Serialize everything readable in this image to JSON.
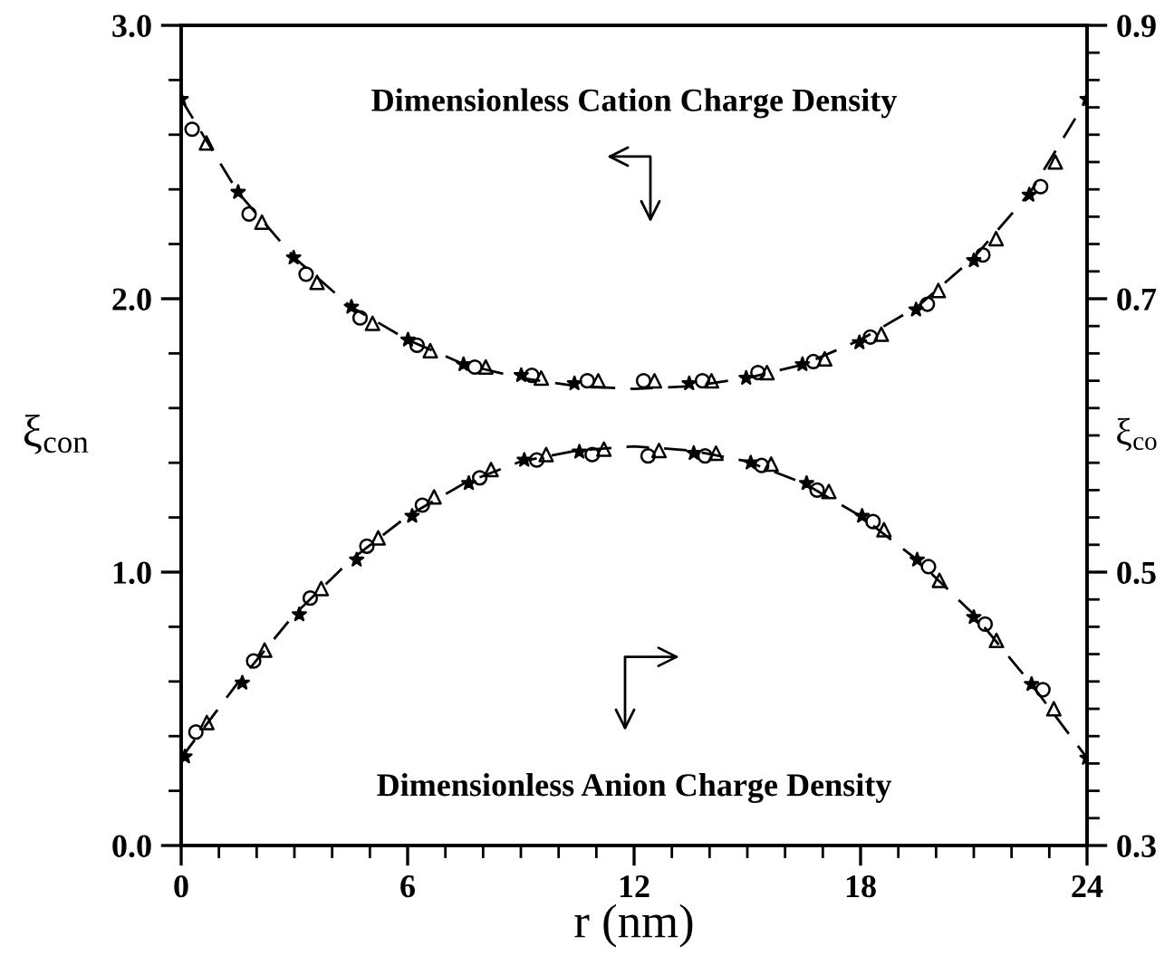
{
  "chart_data": {
    "type": "scatter",
    "xlabel": "r (nm)",
    "ylabel": "ξ$_{con}$",
    "y2label": "ξ$_{co}$",
    "annotations": [
      "Dimensionless Cation Charge Density",
      "Dimensionless Anion Charge Density"
    ],
    "xlim": [
      0,
      24
    ],
    "ylim": [
      0,
      3
    ],
    "y2lim": [
      0.3,
      0.9
    ],
    "xticks": [
      0,
      {
        "value": 1,
        "label": null
      },
      {
        "value": 2,
        "label": null
      },
      {
        "value": 3,
        "label": null
      },
      {
        "value": 4,
        "label": null
      },
      {
        "value": 5,
        "label": null
      },
      6,
      {
        "value": 7,
        "label": null
      },
      {
        "value": 8,
        "label": null
      },
      {
        "value": 9,
        "label": null
      },
      {
        "value": 10,
        "label": null
      },
      {
        "value": 11,
        "label": null
      },
      12,
      {
        "value": 13,
        "label": null
      },
      {
        "value": 14,
        "label": null
      },
      {
        "value": 15,
        "label": null
      },
      {
        "value": 16,
        "label": null
      },
      {
        "value": 17,
        "label": null
      },
      18,
      {
        "value": 19,
        "label": null
      },
      {
        "value": 20,
        "label": null
      },
      {
        "value": 21,
        "label": null
      },
      {
        "value": 22,
        "label": null
      },
      {
        "value": 23,
        "label": null
      },
      24
    ],
    "yticks": [
      {
        "value": 0,
        "label": "0.0"
      },
      {
        "value": 0.2,
        "label": null
      },
      {
        "value": 0.4,
        "label": null
      },
      {
        "value": 0.6,
        "label": null
      },
      {
        "value": 0.8,
        "label": null
      },
      {
        "value": 1,
        "label": "1.0"
      },
      {
        "value": 1.2,
        "label": null
      },
      {
        "value": 1.4,
        "label": null
      },
      {
        "value": 1.6,
        "label": null
      },
      {
        "value": 1.8,
        "label": null
      },
      {
        "value": 2,
        "label": "2.0"
      },
      {
        "value": 2.2,
        "label": null
      },
      {
        "value": 2.4,
        "label": null
      },
      {
        "value": 2.6,
        "label": null
      },
      {
        "value": 2.8,
        "label": null
      },
      {
        "value": 3,
        "label": "3.0"
      }
    ],
    "y2ticks": [
      0.3,
      {
        "value": 0.32,
        "label": null
      },
      {
        "value": 0.34,
        "label": null
      },
      {
        "value": 0.36,
        "label": null
      },
      {
        "value": 0.38,
        "label": null
      },
      {
        "value": 0.4,
        "label": null
      },
      {
        "value": 0.42,
        "label": null
      },
      {
        "value": 0.44,
        "label": null
      },
      {
        "value": 0.46,
        "label": null
      },
      {
        "value": 0.48,
        "label": null
      },
      0.5,
      {
        "value": 0.52,
        "label": null
      },
      {
        "value": 0.54,
        "label": null
      },
      {
        "value": 0.56,
        "label": null
      },
      {
        "value": 0.58,
        "label": null
      },
      {
        "value": 0.6,
        "label": null
      },
      {
        "value": 0.62,
        "label": null
      },
      {
        "value": 0.64,
        "label": null
      },
      {
        "value": 0.66,
        "label": null
      },
      {
        "value": 0.68,
        "label": null
      },
      0.7,
      {
        "value": 0.72,
        "label": null
      },
      {
        "value": 0.74,
        "label": null
      },
      {
        "value": 0.76,
        "label": null
      },
      {
        "value": 0.78,
        "label": null
      },
      {
        "value": 0.8,
        "label": null
      },
      {
        "value": 0.82,
        "label": null
      },
      {
        "value": 0.84,
        "label": null
      },
      {
        "value": 0.86,
        "label": null
      },
      {
        "value": 0.88,
        "label": null
      },
      0.9
    ],
    "grid": false,
    "legend": false,
    "series": [
      {
        "type": "line",
        "color": "#000000",
        "line_style": "dashed",
        "marker": "none",
        "x": [
          0,
          1.5,
          3,
          4.5,
          6,
          7.5,
          9,
          10.5,
          12,
          13.5,
          15,
          16.5,
          18,
          19.5,
          21,
          22.5,
          24
        ],
        "values": [
          2.73,
          2.39,
          2.15,
          1.97,
          1.85,
          1.76,
          1.71,
          1.68,
          1.67,
          1.68,
          1.71,
          1.76,
          1.85,
          1.97,
          2.15,
          2.39,
          2.73
        ]
      },
      {
        "color": "#000000",
        "marker": "star",
        "x": [
          0,
          1.51,
          2.98,
          4.51,
          6.01,
          7.48,
          9.01,
          10.42,
          13.46,
          14.97,
          16.46,
          17.97,
          19.47,
          21.0,
          22.47,
          24
        ],
        "values": [
          2.73,
          2.39,
          2.15,
          1.97,
          1.85,
          1.76,
          1.72,
          1.69,
          1.69,
          1.71,
          1.76,
          1.84,
          1.96,
          2.14,
          2.38,
          2.73
        ]
      },
      {
        "color": "#000000",
        "marker": "circle",
        "x": [
          0.29,
          1.8,
          3.31,
          4.74,
          6.25,
          7.78,
          9.29,
          10.76,
          12.25,
          13.81,
          15.28,
          16.75,
          18.26,
          19.77,
          21.24,
          22.77
        ],
        "values": [
          2.62,
          2.31,
          2.09,
          1.93,
          1.83,
          1.75,
          1.72,
          1.7,
          1.7,
          1.7,
          1.73,
          1.77,
          1.86,
          1.98,
          2.16,
          2.41
        ]
      },
      {
        "color": "#000000",
        "marker": "triangle",
        "x": [
          0.67,
          2.14,
          3.6,
          5.07,
          6.6,
          8.07,
          9.54,
          11.05,
          12.54,
          14.05,
          15.52,
          17.05,
          18.55,
          20.06,
          21.59,
          23.16
        ],
        "values": [
          2.57,
          2.28,
          2.06,
          1.91,
          1.81,
          1.75,
          1.71,
          1.7,
          1.7,
          1.7,
          1.73,
          1.78,
          1.87,
          2.03,
          2.22,
          2.5
        ]
      },
      {
        "type": "line",
        "axis": "y2",
        "color": "#000000",
        "line_style": "dashed",
        "marker": "none",
        "x": [
          0,
          1.5,
          3,
          4.5,
          6,
          7.5,
          9,
          10.5,
          12,
          13.5,
          15,
          16.5,
          18,
          19.5,
          21,
          22.5,
          24
        ],
        "values": [
          0.364,
          0.419,
          0.469,
          0.509,
          0.541,
          0.565,
          0.581,
          0.589,
          0.592,
          0.589,
          0.581,
          0.565,
          0.541,
          0.509,
          0.469,
          0.419,
          0.364
        ]
      },
      {
        "axis": "y2",
        "color": "#000000",
        "marker": "star",
        "x": [
          0.1,
          1.62,
          3.13,
          4.65,
          6.12,
          7.62,
          9.09,
          10.55,
          13.58,
          15.09,
          16.57,
          18.04,
          19.5,
          21.0,
          22.53,
          24
        ],
        "values": [
          0.365,
          0.419,
          0.469,
          0.509,
          0.541,
          0.565,
          0.582,
          0.588,
          0.587,
          0.58,
          0.565,
          0.541,
          0.509,
          0.467,
          0.418,
          0.364
        ]
      },
      {
        "axis": "y2",
        "color": "#000000",
        "marker": "circle",
        "x": [
          0.39,
          1.92,
          3.42,
          4.92,
          6.39,
          7.91,
          9.42,
          10.89,
          12.37,
          13.88,
          15.38,
          16.85,
          18.33,
          19.8,
          21.3,
          22.83
        ],
        "values": [
          0.383,
          0.435,
          0.481,
          0.519,
          0.549,
          0.569,
          0.582,
          0.586,
          0.585,
          0.585,
          0.578,
          0.56,
          0.537,
          0.504,
          0.462,
          0.414
        ]
      },
      {
        "axis": "y2",
        "color": "#000000",
        "marker": "triangle",
        "x": [
          0.68,
          2.21,
          3.71,
          5.22,
          6.7,
          8.21,
          9.67,
          11.2,
          12.66,
          14.17,
          15.63,
          17.16,
          18.62,
          20.09,
          21.6,
          23.12
        ],
        "values": [
          0.39,
          0.443,
          0.488,
          0.525,
          0.555,
          0.575,
          0.586,
          0.59,
          0.589,
          0.587,
          0.579,
          0.559,
          0.531,
          0.494,
          0.45,
          0.4
        ]
      }
    ]
  }
}
